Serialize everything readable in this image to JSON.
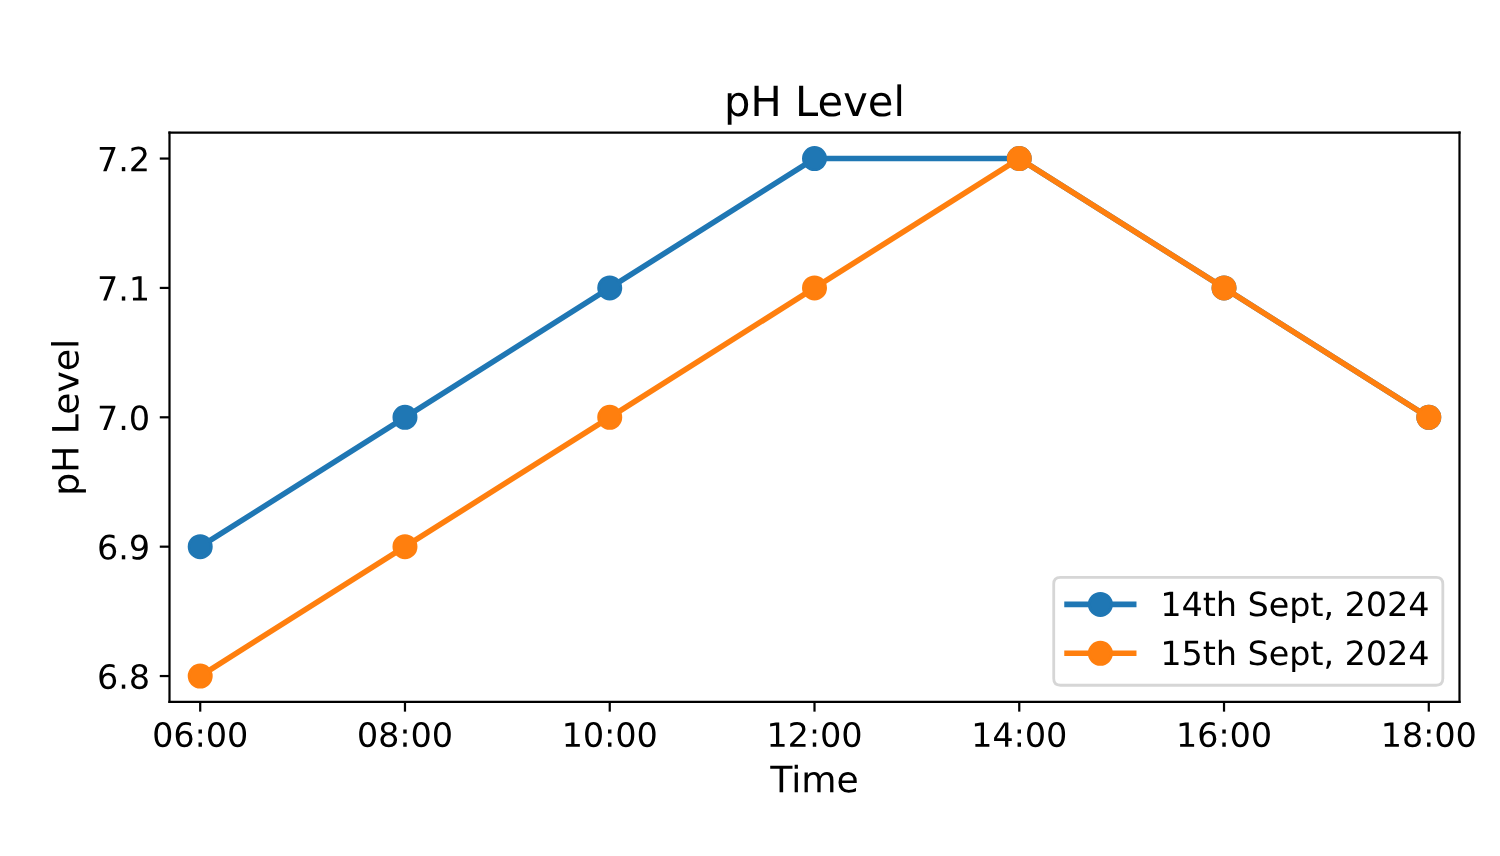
{
  "chart_data": {
    "type": "line",
    "title": "pH Level",
    "xlabel": "Time",
    "ylabel": "pH Level",
    "categories": [
      "06:00",
      "08:00",
      "10:00",
      "12:00",
      "14:00",
      "16:00",
      "18:00"
    ],
    "series": [
      {
        "name": "14th Sept, 2024",
        "color": "#1f77b4",
        "values": [
          6.9,
          7.0,
          7.1,
          7.2,
          7.2,
          7.1,
          7.0
        ]
      },
      {
        "name": "15th Sept, 2024",
        "color": "#ff7f0e",
        "values": [
          6.8,
          6.9,
          7.0,
          7.1,
          7.2,
          7.1,
          7.0
        ]
      }
    ],
    "ylim": [
      6.78,
      7.22
    ],
    "yticks": [
      6.8,
      6.9,
      {
        "value": 7,
        "label": "7.0"
      },
      7.1,
      7.2
    ],
    "marker": "circle",
    "line_style": "solid",
    "legend": "bottom right",
    "grid": false
  }
}
